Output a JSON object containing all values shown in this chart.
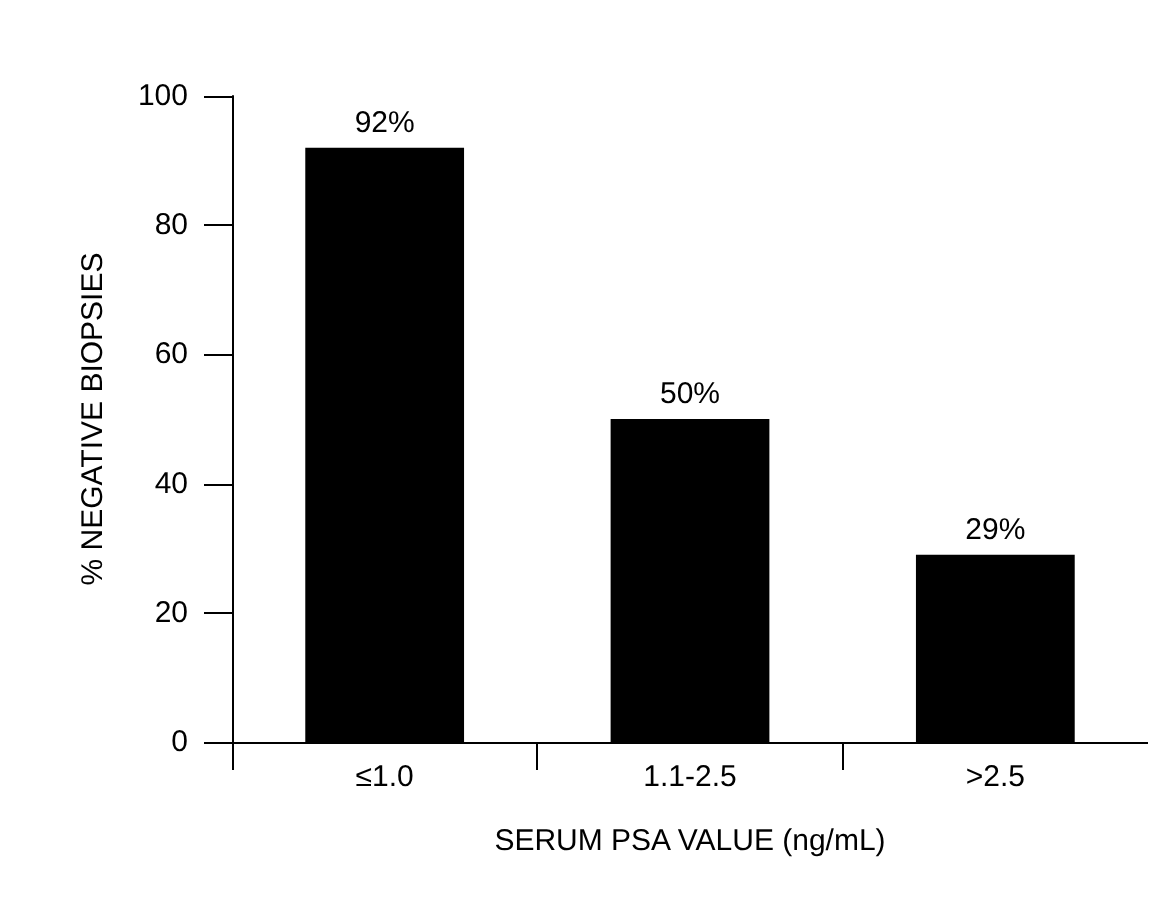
{
  "chart_data": {
    "type": "bar",
    "xlabel": "SERUM PSA VALUE (ng/mL)",
    "ylabel": "% NEGATIVE BIOPSIES",
    "categories": [
      "≤1.0",
      "1.1-2.5",
      ">2.5"
    ],
    "values": [
      92,
      50,
      29
    ],
    "value_labels": [
      "92%",
      "50%",
      "29%"
    ],
    "color": "#000000",
    "ylim": [
      0,
      100
    ],
    "yticks": [
      0,
      20,
      40,
      60,
      80,
      100
    ],
    "grid": false
  }
}
